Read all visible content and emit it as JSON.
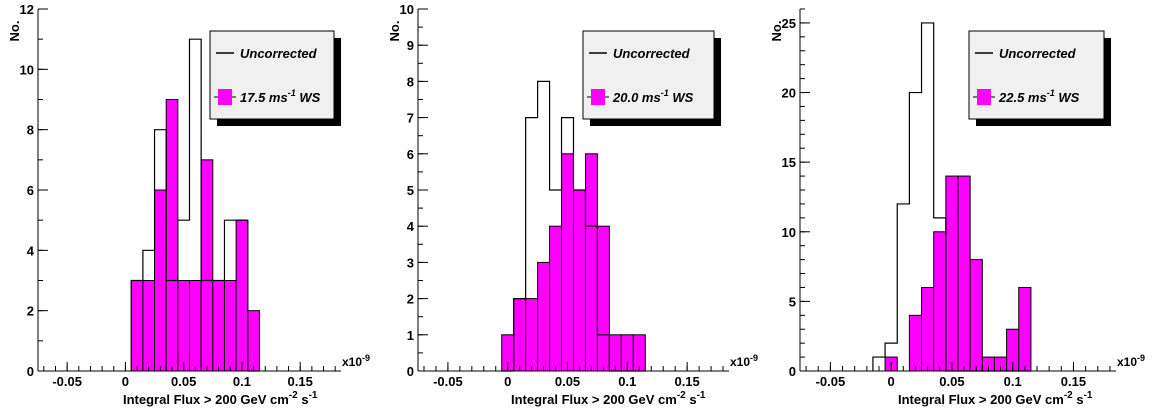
{
  "colors": {
    "fill": "#ff00ff",
    "outline": "#000000",
    "legend_bg": "#f0f0f0",
    "legend_shadow": "#000000"
  },
  "chart_data": [
    {
      "type": "histogram",
      "xlabel": "Integral Flux > 200 GeV cm",
      "xlabel_sup1": "-2",
      "xlabel_mid": " s",
      "xlabel_sup2": "-1",
      "ylabel": "No.",
      "x_multiplier": "x10",
      "x_multiplier_exp": "-9",
      "xlim": [
        -0.075,
        0.185
      ],
      "ylim": [
        0,
        12
      ],
      "xticks": [
        -0.05,
        0,
        0.05,
        0.1,
        0.15
      ],
      "xtick_labels": [
        "-0.05",
        "0",
        "0.05",
        "0.1",
        "0.15"
      ],
      "yticks": [
        0,
        2,
        4,
        6,
        8,
        10,
        12
      ],
      "ytick_labels": [
        "0",
        "2",
        "4",
        "6",
        "8",
        "10",
        "12"
      ],
      "bin_edges": [
        0.005,
        0.015,
        0.025,
        0.035,
        0.045,
        0.055,
        0.065,
        0.075,
        0.085,
        0.095,
        0.105,
        0.115
      ],
      "series": [
        {
          "name": "Uncorrected",
          "style": "outline",
          "values": [
            3,
            4,
            8,
            3,
            5,
            11,
            3,
            3,
            5,
            5,
            0
          ]
        },
        {
          "name": "17.5 ms",
          "name_sup": "-1",
          "name_suffix": " WS",
          "style": "filled",
          "values": [
            3,
            3,
            6,
            9,
            3,
            3,
            7,
            3,
            3,
            5,
            2
          ]
        }
      ],
      "legend": "top-right"
    },
    {
      "type": "histogram",
      "xlabel": "Integral Flux > 200 GeV cm",
      "xlabel_sup1": "-2",
      "xlabel_mid": " s",
      "xlabel_sup2": "-1",
      "ylabel": "No.",
      "x_multiplier": "x10",
      "x_multiplier_exp": "-9",
      "xlim": [
        -0.075,
        0.185
      ],
      "ylim": [
        0,
        10
      ],
      "xticks": [
        -0.05,
        0,
        0.05,
        0.1,
        0.15
      ],
      "xtick_labels": [
        "-0.05",
        "0",
        "0.05",
        "0.1",
        "0.15"
      ],
      "yticks": [
        0,
        1,
        2,
        3,
        4,
        5,
        6,
        7,
        8,
        9,
        10
      ],
      "ytick_labels": [
        "0",
        "1",
        "2",
        "3",
        "4",
        "5",
        "6",
        "7",
        "8",
        "9",
        "10"
      ],
      "bin_edges": [
        -0.005,
        0.005,
        0.015,
        0.025,
        0.035,
        0.045,
        0.055,
        0.065,
        0.075,
        0.085,
        0.095,
        0.105,
        0.115
      ],
      "series": [
        {
          "name": "Uncorrected",
          "style": "outline",
          "values": [
            0,
            2,
            7,
            8,
            5,
            7,
            5,
            4,
            1,
            0,
            0,
            0
          ]
        },
        {
          "name": "20.0 ms",
          "name_sup": "-1",
          "name_suffix": " WS",
          "style": "filled",
          "values": [
            1,
            2,
            2,
            3,
            4,
            6,
            5,
            6,
            4,
            1,
            1,
            1
          ]
        }
      ],
      "legend": "top-right"
    },
    {
      "type": "histogram",
      "xlabel": "Integral Flux > 200 GeV cm",
      "xlabel_sup1": "-2",
      "xlabel_mid": " s",
      "xlabel_sup2": "-1",
      "ylabel": "No.",
      "x_multiplier": "x10",
      "x_multiplier_exp": "-9",
      "xlim": [
        -0.075,
        0.185
      ],
      "ylim": [
        0,
        26
      ],
      "xticks": [
        -0.05,
        0,
        0.05,
        0.1,
        0.15
      ],
      "xtick_labels": [
        "-0.05",
        "0",
        "0.05",
        "0.1",
        "0.15"
      ],
      "yticks": [
        0,
        5,
        10,
        15,
        20,
        25
      ],
      "ytick_labels": [
        "0",
        "5",
        "10",
        "15",
        "20",
        "25"
      ],
      "bin_edges": [
        -0.015,
        -0.005,
        0.005,
        0.015,
        0.025,
        0.035,
        0.045,
        0.055,
        0.065,
        0.075,
        0.085,
        0.095,
        0.105,
        0.115
      ],
      "series": [
        {
          "name": "Uncorrected",
          "style": "outline",
          "values": [
            1,
            2,
            12,
            20,
            25,
            11,
            0,
            0,
            0,
            0,
            0,
            0,
            0
          ]
        },
        {
          "name": "22.5 ms",
          "name_sup": "-1",
          "name_suffix": " WS",
          "style": "filled",
          "values": [
            0,
            1,
            0,
            4,
            6,
            10,
            14,
            14,
            8,
            1,
            1,
            3,
            6
          ]
        }
      ],
      "legend": "top-right"
    }
  ]
}
